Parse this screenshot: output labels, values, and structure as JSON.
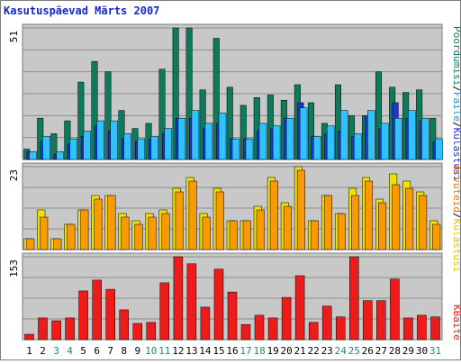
{
  "title": "Kasutuspäevad Märts 2007",
  "colors": {
    "pages_green": "#0e7a5c",
    "files_blue": "#2ec3ff",
    "visits_darkblue": "#1e34d6",
    "sites_yellow": "#f2e100",
    "hits_orange": "#f99b00",
    "kbytes_red": "#ee1b1b",
    "panel_bg": "#c8c8c8",
    "grid": "#8c8c8c",
    "title_blue": "#1028d8",
    "weekend_green": "#1f8c6c"
  },
  "chart_data": [
    {
      "type": "bar",
      "title": "Kasutuspäevad Märts 2007",
      "categories": [
        "1",
        "2",
        "3",
        "4",
        "5",
        "6",
        "7",
        "8",
        "9",
        "10",
        "11",
        "12",
        "13",
        "14",
        "15",
        "16",
        "17",
        "18",
        "19",
        "20",
        "21",
        "22",
        "23",
        "24",
        "25",
        "26",
        "27",
        "28",
        "29",
        "30",
        "31"
      ],
      "weekend_days": [
        "3",
        "4",
        "10",
        "11",
        "17",
        "18",
        "24",
        "25",
        "31"
      ],
      "y_max_label": "51",
      "ylim": [
        0,
        51
      ],
      "legend": [
        "Pöördumisi",
        "/",
        "Faile",
        "/",
        "Külastusi"
      ],
      "series": [
        {
          "name": "Pöördumisi",
          "values": [
            4,
            16,
            10,
            15,
            30,
            38,
            34,
            19,
            12,
            14,
            35,
            51,
            51,
            27,
            47,
            28,
            21,
            24,
            25,
            23,
            29,
            22,
            14,
            29,
            17,
            17,
            34,
            28,
            26,
            27,
            16
          ]
        },
        {
          "name": "Faile",
          "values": [
            3,
            9,
            3,
            8,
            11,
            15,
            15,
            10,
            8,
            9,
            12,
            16,
            19,
            14,
            18,
            8,
            8,
            14,
            13,
            16,
            20,
            9,
            13,
            19,
            10,
            19,
            14,
            16,
            19,
            16,
            8
          ]
        },
        {
          "name": "Külastusi",
          "values": [
            3,
            7,
            2,
            6,
            9,
            13,
            11,
            8,
            7,
            8,
            10,
            16,
            16,
            12,
            14,
            8,
            8,
            11,
            12,
            16,
            22,
            9,
            10,
            11,
            9,
            17,
            12,
            22,
            16,
            15,
            7
          ]
        }
      ]
    },
    {
      "type": "bar",
      "y_max_label": "23",
      "ylim": [
        0,
        23
      ],
      "legend": [
        "Arvuteid",
        "/",
        "Külastusi"
      ],
      "series": [
        {
          "name": "Arvuteid",
          "values": [
            3,
            11,
            3,
            7,
            11,
            15,
            15,
            10,
            8,
            10,
            11,
            17,
            20,
            10,
            17,
            8,
            8,
            12,
            20,
            13,
            23,
            8,
            15,
            10,
            17,
            20,
            14,
            21,
            19,
            16,
            8
          ]
        },
        {
          "name": "Külastusi",
          "values": [
            3,
            9,
            3,
            7,
            11,
            14,
            15,
            9,
            7,
            9,
            10,
            16,
            19,
            9,
            16,
            8,
            8,
            11,
            19,
            12,
            22,
            8,
            15,
            10,
            15,
            19,
            13,
            18,
            17,
            15,
            7
          ]
        }
      ]
    },
    {
      "type": "bar",
      "y_max_label": "153",
      "ylim": [
        0,
        153
      ],
      "legend": [
        "KBaite"
      ],
      "series": [
        {
          "name": "KBaite",
          "values": [
            10,
            40,
            35,
            40,
            90,
            110,
            93,
            55,
            30,
            32,
            105,
            153,
            140,
            60,
            130,
            88,
            28,
            45,
            40,
            78,
            118,
            32,
            62,
            42,
            153,
            72,
            72,
            112,
            40,
            45,
            42
          ]
        }
      ]
    }
  ]
}
